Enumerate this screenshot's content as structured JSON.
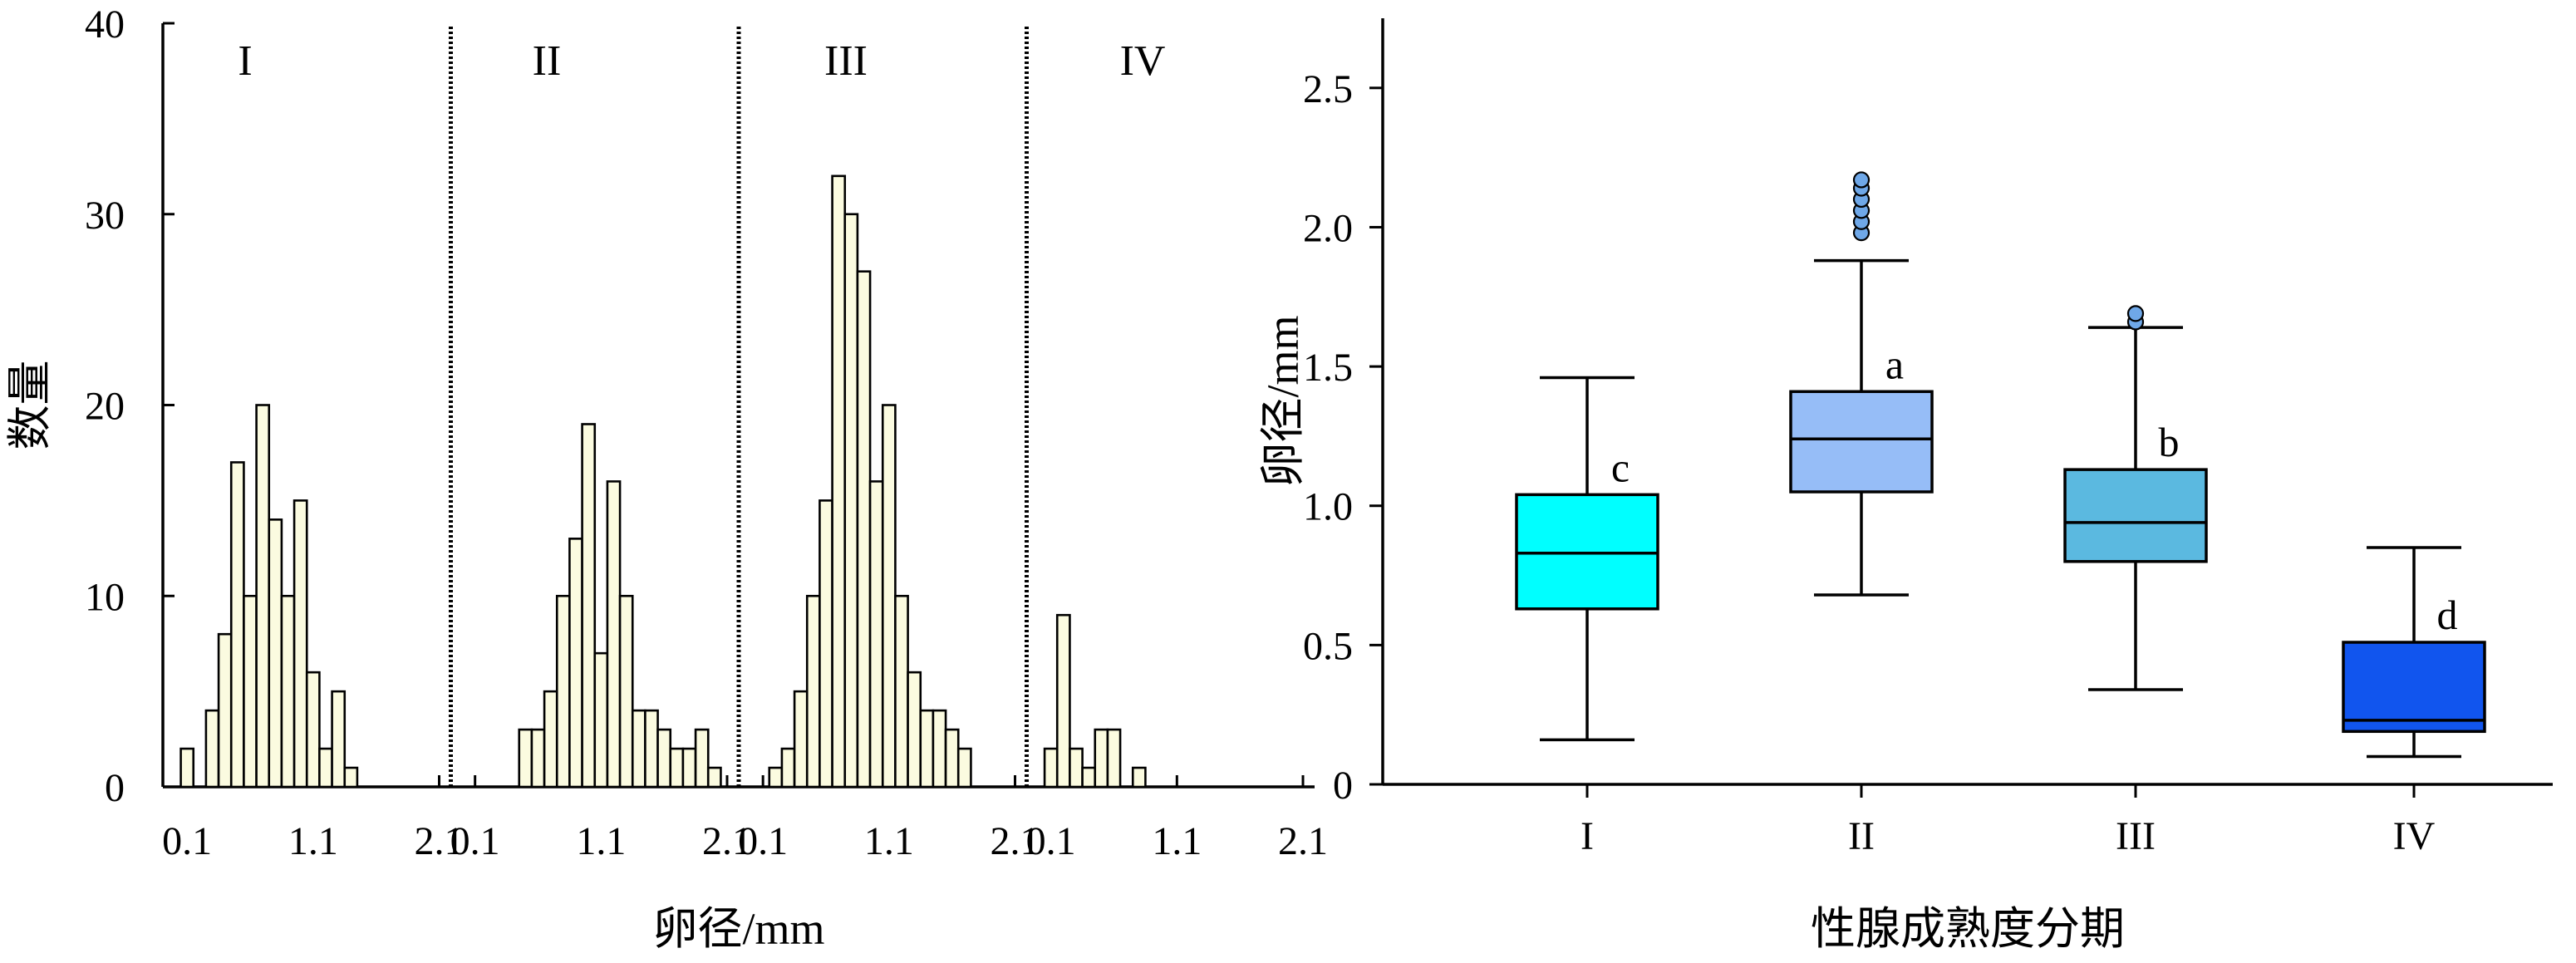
{
  "chart_data": [
    {
      "type": "bar",
      "subtype": "histogram-panels",
      "ylabel": "数量",
      "xlabel": "卵径/mm",
      "ylim": [
        0,
        40
      ],
      "yticks": [
        "0",
        "10",
        "20",
        "30",
        "40"
      ],
      "xticks": [
        "0.1",
        "1.1",
        "2.1"
      ],
      "xlim": [
        0,
        2.1
      ],
      "bin_width": 0.1,
      "grid": false,
      "panels": [
        {
          "label": "I",
          "bins": [
            {
              "x": 0.1,
              "count": 2
            },
            {
              "x": 0.3,
              "count": 4
            },
            {
              "x": 0.4,
              "count": 8
            },
            {
              "x": 0.5,
              "count": 17
            },
            {
              "x": 0.6,
              "count": 10
            },
            {
              "x": 0.7,
              "count": 20
            },
            {
              "x": 0.8,
              "count": 14
            },
            {
              "x": 0.9,
              "count": 10
            },
            {
              "x": 1.0,
              "count": 15
            },
            {
              "x": 1.1,
              "count": 6
            },
            {
              "x": 1.2,
              "count": 2
            },
            {
              "x": 1.3,
              "count": 5
            },
            {
              "x": 1.4,
              "count": 1
            }
          ]
        },
        {
          "label": "II",
          "bins": [
            {
              "x": 0.5,
              "count": 3
            },
            {
              "x": 0.6,
              "count": 3
            },
            {
              "x": 0.7,
              "count": 5
            },
            {
              "x": 0.8,
              "count": 10
            },
            {
              "x": 0.9,
              "count": 13
            },
            {
              "x": 1.0,
              "count": 19
            },
            {
              "x": 1.1,
              "count": 7
            },
            {
              "x": 1.2,
              "count": 16
            },
            {
              "x": 1.3,
              "count": 10
            },
            {
              "x": 1.4,
              "count": 4
            },
            {
              "x": 1.5,
              "count": 4
            },
            {
              "x": 1.6,
              "count": 3
            },
            {
              "x": 1.7,
              "count": 2
            },
            {
              "x": 1.8,
              "count": 2
            },
            {
              "x": 1.9,
              "count": 3
            },
            {
              "x": 2.0,
              "count": 1
            }
          ]
        },
        {
          "label": "III",
          "bins": [
            {
              "x": 0.2,
              "count": 1
            },
            {
              "x": 0.3,
              "count": 2
            },
            {
              "x": 0.4,
              "count": 5
            },
            {
              "x": 0.5,
              "count": 10
            },
            {
              "x": 0.6,
              "count": 15
            },
            {
              "x": 0.7,
              "count": 32
            },
            {
              "x": 0.8,
              "count": 30
            },
            {
              "x": 0.9,
              "count": 27
            },
            {
              "x": 1.0,
              "count": 16
            },
            {
              "x": 1.1,
              "count": 20
            },
            {
              "x": 1.2,
              "count": 10
            },
            {
              "x": 1.3,
              "count": 6
            },
            {
              "x": 1.4,
              "count": 4
            },
            {
              "x": 1.5,
              "count": 4
            },
            {
              "x": 1.6,
              "count": 3
            },
            {
              "x": 1.7,
              "count": 2
            }
          ]
        },
        {
          "label": "IV",
          "bins": [
            {
              "x": 0.1,
              "count": 2
            },
            {
              "x": 0.2,
              "count": 9
            },
            {
              "x": 0.3,
              "count": 2
            },
            {
              "x": 0.4,
              "count": 1
            },
            {
              "x": 0.5,
              "count": 3
            },
            {
              "x": 0.6,
              "count": 3
            },
            {
              "x": 0.8,
              "count": 1
            }
          ]
        }
      ]
    },
    {
      "type": "box",
      "xlabel": "性腺成熟度分期",
      "ylabel": "卵径/mm",
      "ylim": [
        0,
        2.75
      ],
      "yticks": [
        "0",
        "0.5",
        "1.0",
        "1.5",
        "2.0",
        "2.5"
      ],
      "categories": [
        "I",
        "II",
        "III",
        "IV"
      ],
      "boxes": [
        {
          "label": "I",
          "min": 0.16,
          "q1": 0.63,
          "median": 0.83,
          "q3": 1.04,
          "max": 1.46,
          "outliers": [],
          "letter": "c",
          "color": "#00ffff"
        },
        {
          "label": "II",
          "min": 0.68,
          "q1": 1.05,
          "median": 1.24,
          "q3": 1.41,
          "max": 1.88,
          "outliers": [
            1.98,
            2.02,
            2.06,
            2.1,
            2.14,
            2.17
          ],
          "letter": "a",
          "color": "#96bdf7"
        },
        {
          "label": "III",
          "min": 0.34,
          "q1": 0.8,
          "median": 0.94,
          "q3": 1.13,
          "max": 1.64,
          "outliers": [
            1.66,
            1.69
          ],
          "letter": "b",
          "color": "#5bb9e0"
        },
        {
          "label": "IV",
          "min": 0.1,
          "q1": 0.19,
          "median": 0.23,
          "q3": 0.51,
          "max": 0.85,
          "outliers": [],
          "letter": "d",
          "color": "#1155ee"
        }
      ],
      "outlier_color": "#6fa8e8",
      "grid": false
    }
  ]
}
